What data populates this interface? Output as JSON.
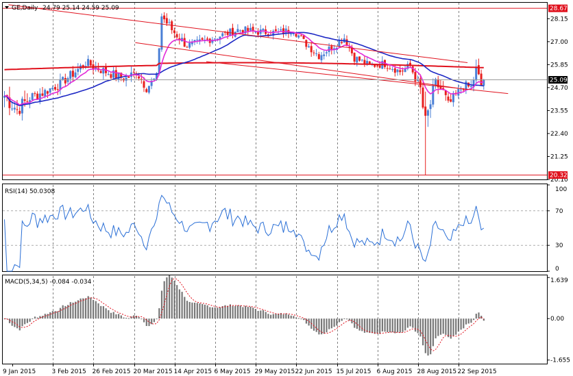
{
  "header": {
    "symbol": "GE,Daily",
    "ohlc": "24.79 25.14 24.59 25.09"
  },
  "colors": {
    "background": "#ffffff",
    "frame": "#000000",
    "grid": "#808080",
    "bull": "#4a7fd6",
    "bear": "#e8201f",
    "ma_fast": "#e22bd8",
    "ma_slow": "#1c27c4",
    "ma_long": "#e0101c",
    "channel": "#e0101c",
    "level_line": "#e0101c",
    "rsi_line": "#2a6fd6",
    "macd_bars": "#777777",
    "macd_signal": "#e0101c",
    "price_tag_dark": "#000000",
    "price_tag_red": "#e0101c"
  },
  "chart_data": [
    {
      "type": "candlestick",
      "title": "GE,Daily",
      "ylim": [
        20.1,
        28.95
      ],
      "y_ticks": [
        "28.15",
        "27.00",
        "25.85",
        "24.70",
        "23.55",
        "22.40",
        "21.25",
        "20.10"
      ],
      "levels": {
        "resistance": 28.67,
        "support": 20.32
      },
      "level_labels": [
        "28.67",
        "20.32"
      ],
      "current_price": 25.09,
      "current_price_label": "25.09",
      "last_ohlc": [
        24.79,
        25.14,
        24.59,
        25.09
      ],
      "channel_upper": {
        "start": [
          2,
          28.85
        ],
        "end": [
          183,
          25.95
        ]
      },
      "channel_mid": {
        "start": [
          52,
          26.95
        ],
        "end": [
          183,
          24.6
        ]
      },
      "channel_lower": {
        "start": [
          80,
          26.0
        ],
        "end": [
          199,
          24.4
        ]
      },
      "anchors": [
        {
          "i": 0,
          "p": 24.3,
          "v": 0.9
        },
        {
          "i": 5,
          "p": 23.6,
          "v": 0.8
        },
        {
          "i": 10,
          "p": 24.2,
          "v": 0.6
        },
        {
          "i": 16,
          "p": 24.5,
          "v": 0.5
        },
        {
          "i": 22,
          "p": 24.9,
          "v": 0.5
        },
        {
          "i": 28,
          "p": 25.5,
          "v": 0.5
        },
        {
          "i": 32,
          "p": 25.95,
          "v": 0.5
        },
        {
          "i": 38,
          "p": 25.6,
          "v": 0.5
        },
        {
          "i": 44,
          "p": 25.3,
          "v": 0.5
        },
        {
          "i": 48,
          "p": 25.15,
          "v": 0.5
        },
        {
          "i": 52,
          "p": 25.5,
          "v": 0.5
        },
        {
          "i": 56,
          "p": 24.7,
          "v": 0.5
        },
        {
          "i": 60,
          "p": 25.2,
          "v": 0.5
        },
        {
          "i": 62,
          "p": 28.3,
          "v": 0.6
        },
        {
          "i": 66,
          "p": 27.6,
          "v": 0.5
        },
        {
          "i": 72,
          "p": 26.8,
          "v": 0.4
        },
        {
          "i": 78,
          "p": 27.0,
          "v": 0.4
        },
        {
          "i": 85,
          "p": 27.3,
          "v": 0.4
        },
        {
          "i": 92,
          "p": 27.6,
          "v": 0.4
        },
        {
          "i": 100,
          "p": 27.5,
          "v": 0.4
        },
        {
          "i": 108,
          "p": 27.45,
          "v": 0.4
        },
        {
          "i": 114,
          "p": 27.6,
          "v": 0.4
        },
        {
          "i": 118,
          "p": 27.0,
          "v": 0.4
        },
        {
          "i": 124,
          "p": 26.3,
          "v": 0.4
        },
        {
          "i": 130,
          "p": 26.8,
          "v": 0.4
        },
        {
          "i": 134,
          "p": 27.2,
          "v": 0.4
        },
        {
          "i": 138,
          "p": 26.2,
          "v": 0.4
        },
        {
          "i": 144,
          "p": 25.8,
          "v": 0.4
        },
        {
          "i": 150,
          "p": 25.9,
          "v": 0.4
        },
        {
          "i": 156,
          "p": 25.5,
          "v": 0.4
        },
        {
          "i": 160,
          "p": 25.8,
          "v": 0.5
        },
        {
          "i": 164,
          "p": 24.6,
          "v": 0.7
        },
        {
          "i": 166,
          "p": 22.8,
          "v": 1.2
        },
        {
          "i": 168,
          "p": 23.9,
          "v": 0.9
        },
        {
          "i": 170,
          "p": 24.9,
          "v": 0.6
        },
        {
          "i": 173,
          "p": 24.5,
          "v": 0.6
        },
        {
          "i": 175,
          "p": 23.8,
          "v": 0.6
        },
        {
          "i": 178,
          "p": 24.3,
          "v": 0.5
        },
        {
          "i": 181,
          "p": 24.8,
          "v": 0.5
        },
        {
          "i": 184,
          "p": 24.7,
          "v": 0.5
        },
        {
          "i": 186,
          "p": 25.6,
          "v": 0.6
        },
        {
          "i": 188,
          "p": 24.8,
          "v": 0.5
        },
        {
          "i": 189,
          "p": 25.09,
          "v": 0.4
        }
      ],
      "x_ticks": [
        "9 Jan 2015",
        "3 Feb 2015",
        "26 Feb 2015",
        "20 Mar 2015",
        "14 Apr 2015",
        "6 May 2015",
        "29 May 2015",
        "22 Jun 2015",
        "15 Jul 2015",
        "6 Aug 2015",
        "28 Aug 2015",
        "22 Sep 2015"
      ],
      "x_tick_index": [
        0,
        16,
        32,
        48,
        64,
        80,
        96,
        112,
        128,
        144,
        160,
        176
      ]
    },
    {
      "type": "line",
      "title": "RSI(14) 50.0308",
      "ylim": [
        0,
        100
      ],
      "y_ticks": [
        "100",
        "70",
        "30",
        "0"
      ],
      "levels": [
        70,
        30
      ],
      "last": 50.0308
    },
    {
      "type": "bar",
      "title": "MACD(5,34,5) -0.084 -0.034",
      "ylim": [
        -1.8,
        1.7
      ],
      "y_ticks": [
        "1.639",
        "0.00",
        "-1.655"
      ],
      "last": [
        -0.084,
        -0.034
      ]
    }
  ]
}
